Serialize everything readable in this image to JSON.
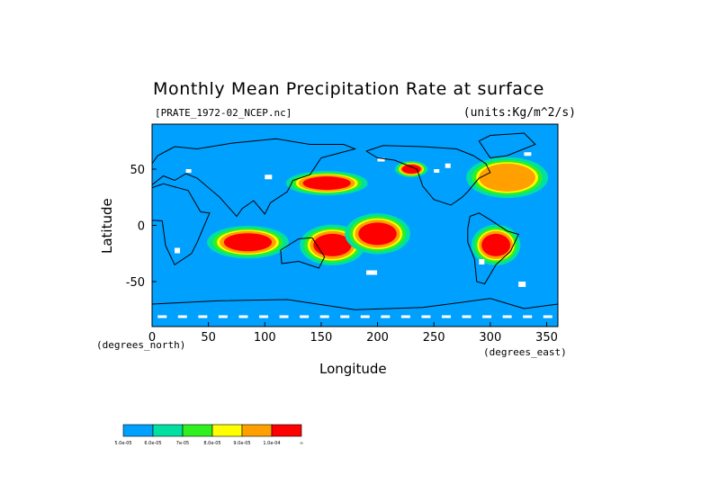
{
  "chart_data": {
    "type": "heatmap",
    "title": "Monthly Mean Precipitation Rate at surface",
    "subtitle_left": "[PRATE_1972-02_NCEP.nc]",
    "subtitle_right": "(units:Kg/m^2/s)",
    "xlabel": "Longitude",
    "ylabel": "Latitude",
    "x_units_left": "(degrees_north)",
    "x_units_right": "(degrees_east)",
    "xlim": [
      0,
      360
    ],
    "ylim": [
      -90,
      90
    ],
    "x_ticks": [
      "0",
      "50",
      "100",
      "150",
      "200",
      "250",
      "300",
      "350"
    ],
    "y_ticks": [
      "50",
      "0",
      "-50"
    ],
    "legend": {
      "position": "bottom-left",
      "colors": [
        "#00a0ff",
        "#00e0a0",
        "#30f020",
        "#ffff00",
        "#ffa000",
        "#ff0000"
      ],
      "labels": [
        "5.0e-05",
        "6.0e-05",
        "7e-05",
        "8.0e-05",
        "9.0e-05",
        "1.0e-04",
        "∞"
      ]
    },
    "background_level": "#00a0ff",
    "high_precip_regions": [
      {
        "lon_min": 140,
        "lon_max": 180,
        "lat_min": -30,
        "lat_max": -5,
        "level": 6
      },
      {
        "lon_min": 180,
        "lon_max": 220,
        "lat_min": -20,
        "lat_max": 5,
        "level": 6
      },
      {
        "lon_min": 60,
        "lon_max": 110,
        "lat_min": -25,
        "lat_max": -5,
        "level": 6
      },
      {
        "lon_min": 290,
        "lon_max": 320,
        "lat_min": -30,
        "lat_max": -5,
        "level": 6
      },
      {
        "lon_min": 130,
        "lon_max": 180,
        "lat_min": 30,
        "lat_max": 45,
        "level": 6
      },
      {
        "lon_min": 220,
        "lon_max": 240,
        "lat_min": 45,
        "lat_max": 55,
        "level": 6
      },
      {
        "lon_min": 290,
        "lon_max": 340,
        "lat_min": 30,
        "lat_max": 55,
        "level": 5
      }
    ]
  }
}
